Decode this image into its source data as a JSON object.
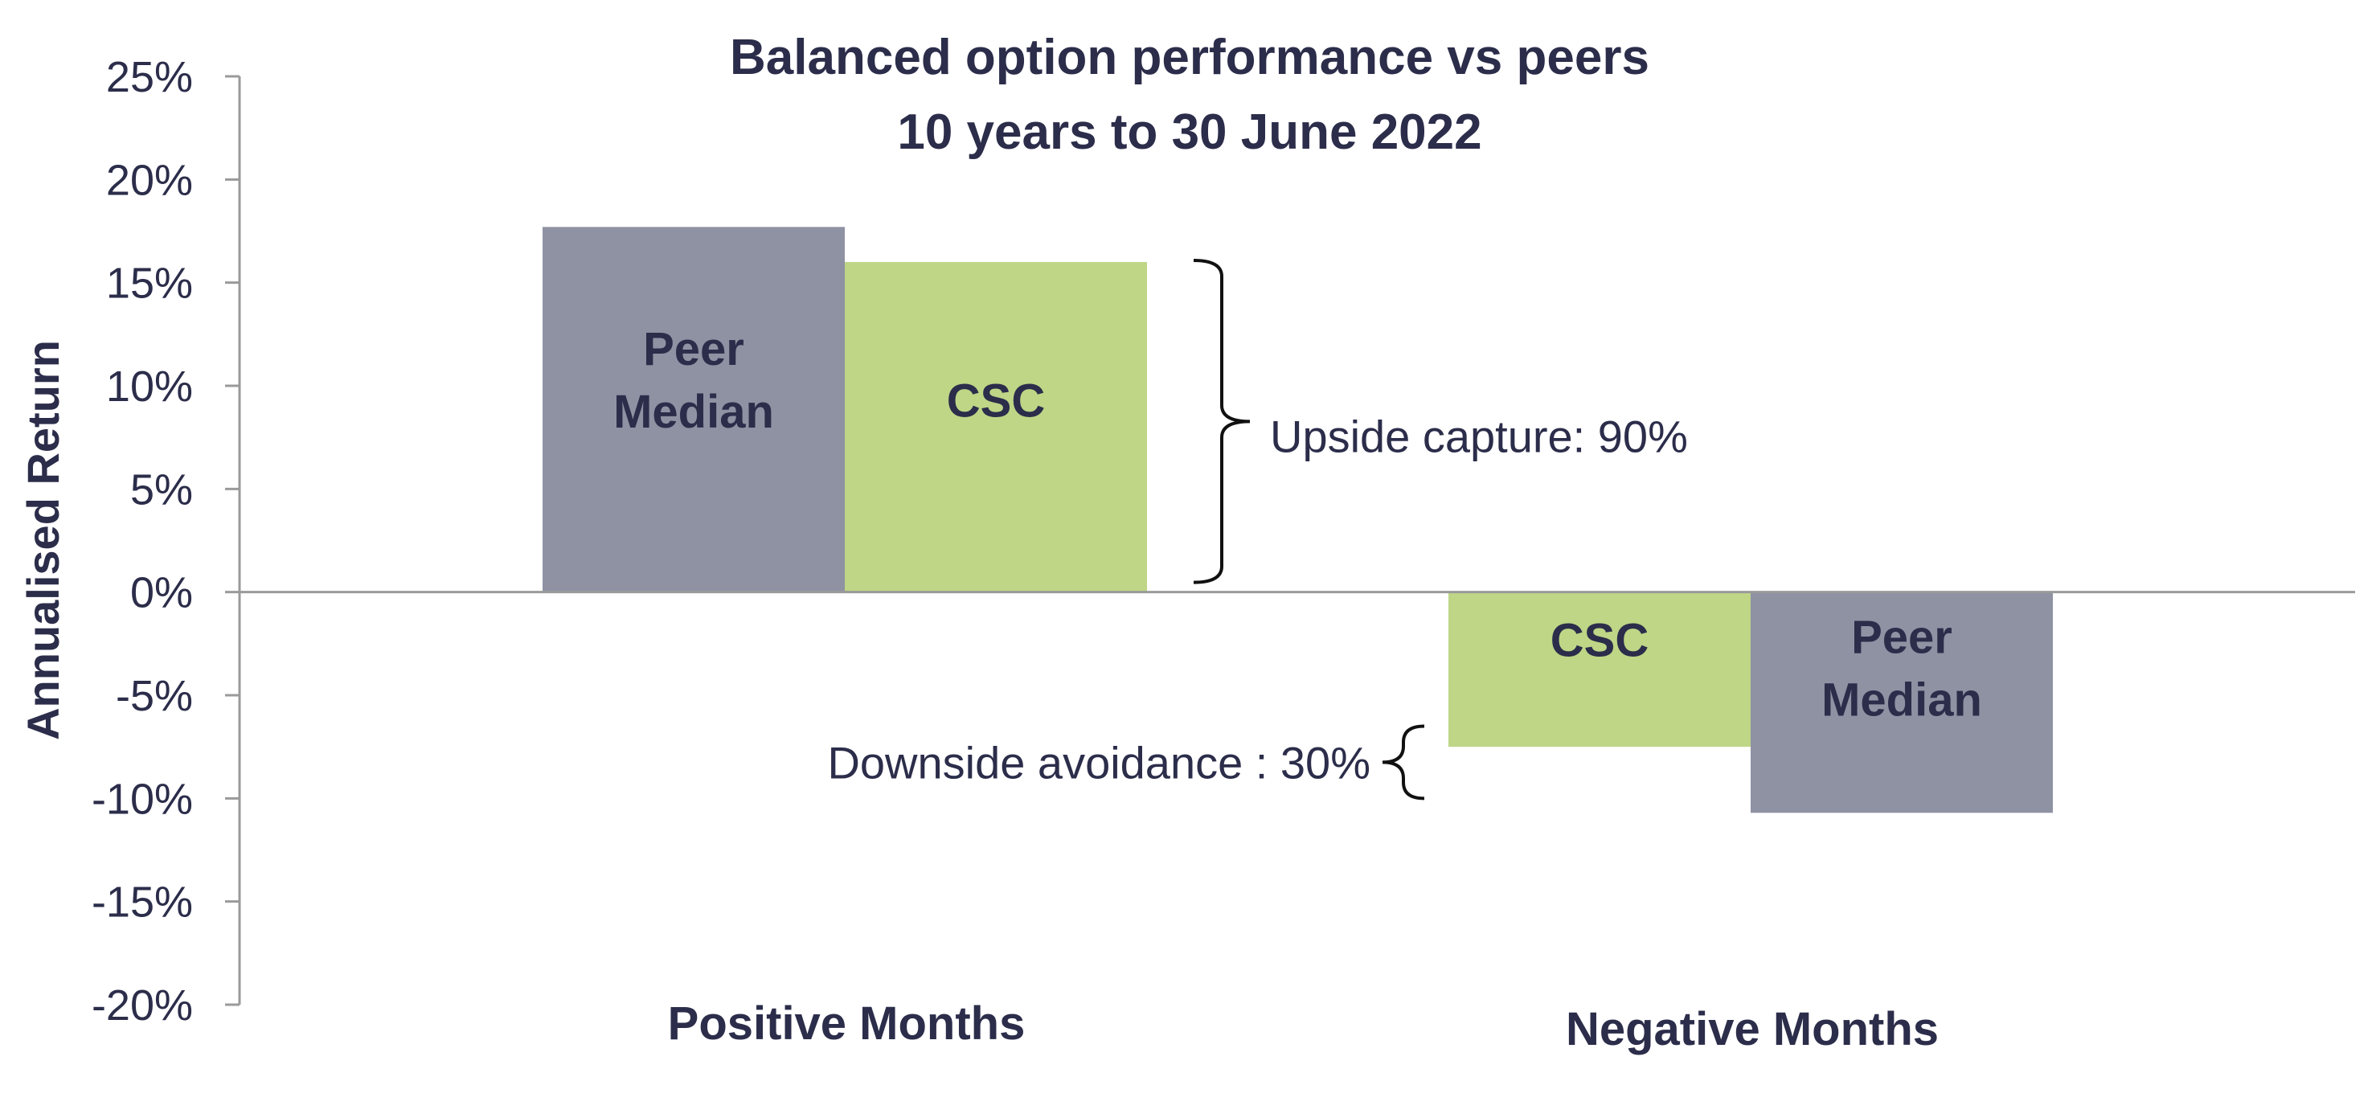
{
  "chart_data": {
    "type": "bar",
    "title": "Balanced option performance vs peers",
    "subtitle": "10 years to 30 June 2022",
    "ylabel": "Annualised Return",
    "xlabel": "",
    "ylim": [
      -20,
      25
    ],
    "yticks": [
      25,
      20,
      15,
      10,
      5,
      0,
      -5,
      -10,
      -15,
      -20
    ],
    "ytick_suffix": "%",
    "grid": false,
    "legend": "none",
    "groups": [
      {
        "category": "Positive Months",
        "bars": [
          {
            "series": "Peer Median",
            "label": [
              "Peer",
              "Median"
            ],
            "value": 17.7,
            "color": "#8f92a3"
          },
          {
            "series": "CSC",
            "label": [
              "CSC"
            ],
            "value": 16.0,
            "color": "#bed686"
          }
        ]
      },
      {
        "category": "Negative Months",
        "bars": [
          {
            "series": "CSC",
            "label": [
              "CSC"
            ],
            "value": -7.5,
            "color": "#bed686"
          },
          {
            "series": "Peer Median",
            "label": [
              "Peer",
              "Median"
            ],
            "value": -10.7,
            "color": "#8f92a3"
          }
        ]
      }
    ],
    "annotations": [
      {
        "text": "Upside capture: 90%",
        "from": 16.0,
        "to": 0,
        "group": 0,
        "side": "right"
      },
      {
        "text": "Downside avoidance :  30%",
        "from": -6.5,
        "to": -10,
        "group": 1,
        "side": "left"
      }
    ],
    "colors": {
      "text": "#2b2d4a",
      "axis": "#9a9a9a"
    }
  }
}
